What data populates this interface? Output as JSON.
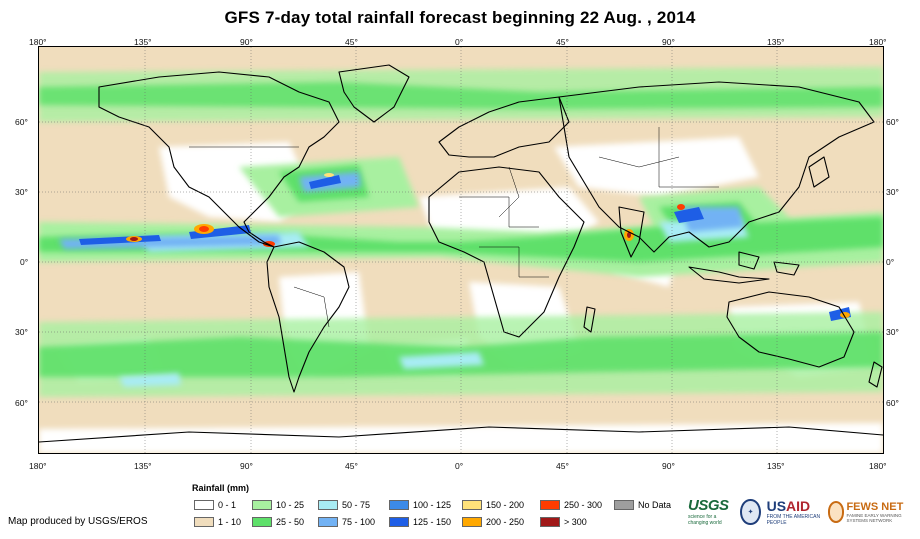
{
  "title": "GFS 7-day total rainfall forecast beginning 22 Aug. , 2014",
  "axes": {
    "lon_top": [
      "180°",
      "135°",
      "90°",
      "45°",
      "0°",
      "45°",
      "90°",
      "135°",
      "180°"
    ],
    "lon_bottom": [
      "180°",
      "135°",
      "90°",
      "45°",
      "0°",
      "45°",
      "90°",
      "135°",
      "180°"
    ],
    "lat_left": [
      "60°",
      "30°",
      "0°",
      "30°",
      "60°"
    ],
    "lat_right": [
      "60°",
      "30°",
      "0°",
      "30°",
      "60°"
    ]
  },
  "legend": {
    "title": "Rainfall (mm)",
    "items": [
      {
        "label": "0 - 1",
        "color": "#ffffff"
      },
      {
        "label": "1 - 10",
        "color": "#f0ddbd"
      },
      {
        "label": "10 - 25",
        "color": "#a8f0a0"
      },
      {
        "label": "25 - 50",
        "color": "#5ee06a"
      },
      {
        "label": "50 - 75",
        "color": "#a8ecf4"
      },
      {
        "label": "75 - 100",
        "color": "#72b2f4"
      },
      {
        "label": "100 - 125",
        "color": "#3c8ae8"
      },
      {
        "label": "125 - 150",
        "color": "#1e5ee6"
      },
      {
        "label": "150 - 200",
        "color": "#ffe27a"
      },
      {
        "label": "200 - 250",
        "color": "#ffa800"
      },
      {
        "label": "250 - 300",
        "color": "#ff3c00"
      },
      {
        "label": "> 300",
        "color": "#a01818"
      },
      {
        "label": "No Data",
        "color": "#9e9e9e"
      }
    ]
  },
  "credit": "Map produced by USGS/EROS",
  "logos": {
    "usgs": "USGS",
    "usgs_tag": "science for a changing world",
    "usaid_1": "US",
    "usaid_2": "AID",
    "usaid_tag": "FROM THE AMERICAN PEOPLE",
    "fews": "FEWS NET",
    "fews_tag": "FAMINE EARLY WARNING SYSTEMS NETWORK"
  }
}
